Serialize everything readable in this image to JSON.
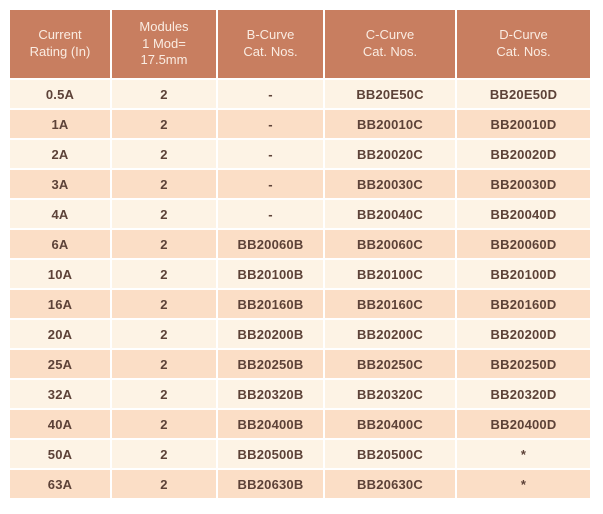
{
  "colors": {
    "header_bg": "#C87E60",
    "header_text": "#FAECE2",
    "row_light_bg": "#FDF3E5",
    "row_peach_bg": "#FBDEC6",
    "cell_text": "#5D4238",
    "grid_line": "#FFFFFF",
    "page_bg": "#FFFFFF"
  },
  "table": {
    "headers": [
      "Current\nRating (In)",
      "Modules\n1 Mod=\n17.5mm",
      "B-Curve\nCat. Nos.",
      "C-Curve\nCat. Nos.",
      "D-Curve\nCat. Nos."
    ],
    "column_names": [
      "current-rating-cell",
      "modules-cell",
      "b-curve-cell",
      "c-curve-cell",
      "d-curve-cell"
    ],
    "rows": [
      [
        "0.5A",
        "2",
        "-",
        "BB20E50C",
        "BB20E50D"
      ],
      [
        "1A",
        "2",
        "-",
        "BB20010C",
        "BB20010D"
      ],
      [
        "2A",
        "2",
        "-",
        "BB20020C",
        "BB20020D"
      ],
      [
        "3A",
        "2",
        "-",
        "BB20030C",
        "BB20030D"
      ],
      [
        "4A",
        "2",
        "-",
        "BB20040C",
        "BB20040D"
      ],
      [
        "6A",
        "2",
        "BB20060B",
        "BB20060C",
        "BB20060D"
      ],
      [
        "10A",
        "2",
        "BB20100B",
        "BB20100C",
        "BB20100D"
      ],
      [
        "16A",
        "2",
        "BB20160B",
        "BB20160C",
        "BB20160D"
      ],
      [
        "20A",
        "2",
        "BB20200B",
        "BB20200C",
        "BB20200D"
      ],
      [
        "25A",
        "2",
        "BB20250B",
        "BB20250C",
        "BB20250D"
      ],
      [
        "32A",
        "2",
        "BB20320B",
        "BB20320C",
        "BB20320D"
      ],
      [
        "40A",
        "2",
        "BB20400B",
        "BB20400C",
        "BB20400D"
      ],
      [
        "50A",
        "2",
        "BB20500B",
        "BB20500C",
        "*"
      ],
      [
        "63A",
        "2",
        "BB20630B",
        "BB20630C",
        "*"
      ]
    ]
  }
}
